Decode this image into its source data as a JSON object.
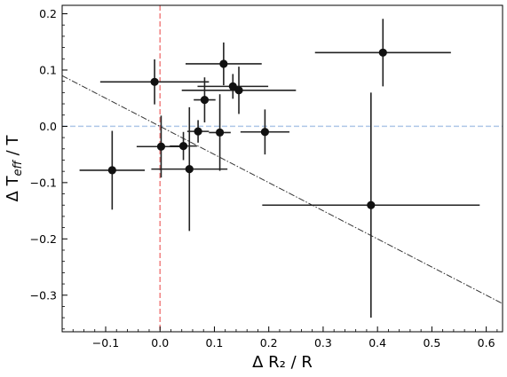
{
  "chart_data": {
    "type": "scatter",
    "xlabel": "Δ R₂ / R",
    "ylabel_parts": {
      "delta": "Δ T",
      "sub": "eff",
      "rest": " / T"
    },
    "xlim": [
      -0.18,
      0.63
    ],
    "ylim": [
      -0.365,
      0.215
    ],
    "xticks": [
      -0.1,
      0.0,
      0.1,
      0.2,
      0.3,
      0.4,
      0.5,
      0.6
    ],
    "xtick_labels": [
      "−0.1",
      "0.0",
      "0.1",
      "0.2",
      "0.3",
      "0.4",
      "0.5",
      "0.6"
    ],
    "yticks": [
      -0.3,
      -0.2,
      -0.1,
      0.0,
      0.1,
      0.2
    ],
    "ytick_labels": [
      "−0.3",
      "−0.2",
      "−0.1",
      "0.0",
      "0.1",
      "0.2"
    ],
    "grid": false,
    "reference_lines": {
      "vertical_x": 0.0,
      "vertical_color": "#f08080",
      "horizontal_y": 0.0,
      "horizontal_color": "#aec7e8",
      "trend": {
        "x": [
          -0.18,
          0.63
        ],
        "y": [
          0.09,
          -0.315
        ],
        "color": "#333333"
      }
    },
    "points": [
      {
        "x": -0.088,
        "y": -0.078,
        "xerr": 0.06,
        "yerr": 0.07
      },
      {
        "x": -0.01,
        "y": 0.079,
        "xerr": 0.1,
        "yerr": 0.04
      },
      {
        "x": 0.002,
        "y": -0.036,
        "xerr": 0.045,
        "yerr": 0.055
      },
      {
        "x": 0.043,
        "y": -0.035,
        "xerr": 0.025,
        "yerr": 0.025
      },
      {
        "x": 0.054,
        "y": -0.076,
        "xerr": 0.07,
        "yerr": 0.11
      },
      {
        "x": 0.07,
        "y": -0.009,
        "xerr": 0.02,
        "yerr": 0.02
      },
      {
        "x": 0.082,
        "y": 0.047,
        "xerr": 0.02,
        "yerr": 0.04
      },
      {
        "x": 0.11,
        "y": -0.011,
        "xerr": 0.02,
        "yerr": 0.068
      },
      {
        "x": 0.117,
        "y": 0.111,
        "xerr": 0.07,
        "yerr": 0.038
      },
      {
        "x": 0.134,
        "y": 0.071,
        "xerr": 0.065,
        "yerr": 0.022
      },
      {
        "x": 0.145,
        "y": 0.064,
        "xerr": 0.105,
        "yerr": 0.042
      },
      {
        "x": 0.193,
        "y": -0.01,
        "xerr": 0.045,
        "yerr": 0.04
      },
      {
        "x": 0.388,
        "y": -0.14,
        "xerr": 0.2,
        "yerr": 0.2
      },
      {
        "x": 0.41,
        "y": 0.131,
        "xerr": 0.125,
        "yerr": 0.06
      }
    ],
    "marker_color": "#111111"
  }
}
